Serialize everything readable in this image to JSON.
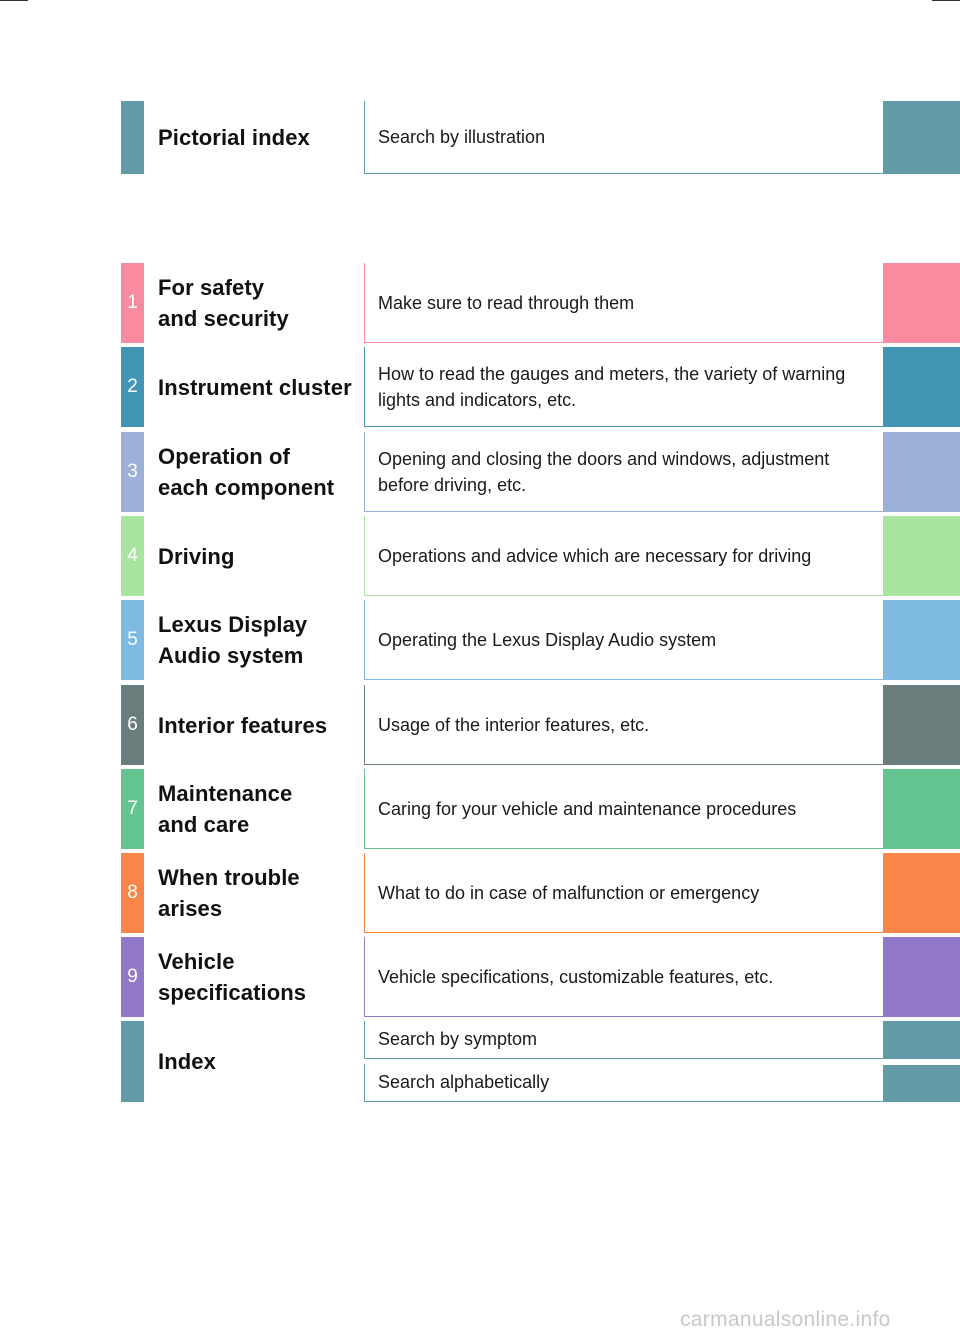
{
  "pictorial": {
    "title": "Pictorial index",
    "description": "Search by illustration",
    "color": "#629aa5"
  },
  "sections": [
    {
      "number": "1",
      "title_lines": [
        "For safety",
        "and security"
      ],
      "description_lines": [
        "Make sure to read through them"
      ],
      "color": "#f98ba0"
    },
    {
      "number": "2",
      "title_lines": [
        "Instrument cluster"
      ],
      "description_lines": [
        "How to read the gauges and meters, the variety of warning",
        "lights and indicators, etc."
      ],
      "color": "#4295b4"
    },
    {
      "number": "3",
      "title_lines": [
        "Operation of",
        "each component"
      ],
      "description_lines": [
        "Opening and closing the doors and windows, adjustment",
        "before driving, etc."
      ],
      "color": "#9cb0d8"
    },
    {
      "number": "4",
      "title_lines": [
        "Driving"
      ],
      "description_lines": [
        "Operations and advice which are necessary for driving"
      ],
      "color": "#a9e5a1"
    },
    {
      "number": "5",
      "title_lines": [
        "Lexus Display",
        "Audio system"
      ],
      "description_lines": [
        "Operating the Lexus Display Audio system"
      ],
      "color": "#7ebae2"
    },
    {
      "number": "6",
      "title_lines": [
        "Interior features"
      ],
      "description_lines": [
        "Usage of the interior features, etc."
      ],
      "color": "#6b7c7c"
    },
    {
      "number": "7",
      "title_lines": [
        "Maintenance",
        "and care"
      ],
      "description_lines": [
        "Caring for your vehicle and maintenance procedures"
      ],
      "color": "#63c491"
    },
    {
      "number": "8",
      "title_lines": [
        "When trouble",
        "arises"
      ],
      "description_lines": [
        "What to do in case of malfunction or emergency"
      ],
      "color": "#f98548"
    },
    {
      "number": "9",
      "title_lines": [
        "Vehicle",
        "specifications"
      ],
      "description_lines": [
        "Vehicle specifications, customizable features, etc."
      ],
      "color": "#9178c8"
    }
  ],
  "index": {
    "title": "Index",
    "items": [
      "Search by symptom",
      "Search alphabetically"
    ],
    "color": "#629aa5"
  },
  "watermark": "carmanualsonline.info"
}
